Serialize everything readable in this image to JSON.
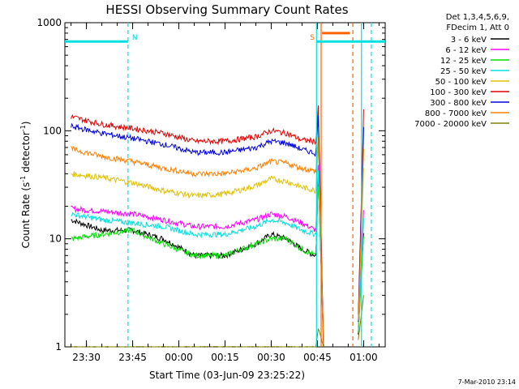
{
  "chart_data": {
    "type": "line",
    "title": "HESSI Observing Summary Count Rates",
    "xlabel": "Start Time (03-Jun-09 23:25:22)",
    "ylabel_main": "Count Rate (s",
    "ylabel_sup1": "-1",
    "ylabel_mid": " detector",
    "ylabel_sup2": "-1",
    "ylabel_end": ")",
    "yscale": "log",
    "ylim": [
      1,
      1000
    ],
    "xlim_minutes": [
      -2,
      102
    ],
    "y_ticks": [
      {
        "value": 1,
        "label": "1"
      },
      {
        "value": 10,
        "label": "10"
      },
      {
        "value": 100,
        "label": "100"
      },
      {
        "value": 1000,
        "label": "1000"
      }
    ],
    "x_ticks": [
      {
        "minute": 5,
        "label": "23:30"
      },
      {
        "minute": 20,
        "label": "23:45"
      },
      {
        "minute": 35,
        "label": "00:00"
      },
      {
        "minute": 50,
        "label": "00:15"
      },
      {
        "minute": 65,
        "label": "00:30"
      },
      {
        "minute": 80,
        "label": "00:45"
      },
      {
        "minute": 95,
        "label": "01:00"
      }
    ],
    "legend_header": [
      "Det 1,3,4,5,6,9,",
      "FDecim 1, Att 0"
    ],
    "series": [
      {
        "name": "3 - 6 keV",
        "color": "#000000",
        "x": [
          0,
          10,
          20,
          30,
          40,
          50,
          60,
          65,
          70,
          75,
          79.5,
          80.3,
          82,
          93,
          95
        ],
        "y": [
          15,
          12,
          12,
          10,
          7,
          7,
          9,
          11,
          10,
          8,
          7,
          40,
          1,
          1,
          12
        ]
      },
      {
        "name": "6 - 12 keV",
        "color": "#ff00ff",
        "x": [
          0,
          10,
          20,
          30,
          40,
          50,
          60,
          65,
          70,
          75,
          79.5,
          80.3,
          82,
          93,
          95
        ],
        "y": [
          19,
          18,
          17,
          15,
          13,
          13,
          15,
          17,
          16,
          14,
          12,
          50,
          1,
          1,
          18
        ]
      },
      {
        "name": "12 - 25 keV",
        "color": "#00e000",
        "x": [
          0,
          10,
          20,
          30,
          40,
          50,
          60,
          65,
          70,
          75,
          79.5,
          80.3,
          82,
          93,
          95
        ],
        "y": [
          10,
          11,
          12,
          9,
          7,
          7,
          9,
          10,
          10,
          8,
          7,
          35,
          1,
          1,
          11
        ]
      },
      {
        "name": "25 - 50 keV",
        "color": "#00e0e0",
        "x": [
          0,
          10,
          20,
          30,
          40,
          50,
          60,
          65,
          70,
          75,
          79.5,
          80.3,
          82,
          93,
          95
        ],
        "y": [
          17,
          15,
          14,
          13,
          11,
          11,
          13,
          15,
          14,
          12,
          11,
          45,
          1,
          1,
          15
        ]
      },
      {
        "name": "50 - 100 keV",
        "color": "#e0c000",
        "x": [
          0,
          10,
          20,
          30,
          40,
          50,
          60,
          65,
          70,
          75,
          79.5,
          80.3,
          82,
          93,
          95
        ],
        "y": [
          40,
          37,
          33,
          28,
          25,
          26,
          31,
          36,
          34,
          30,
          28,
          80,
          1,
          1,
          45
        ]
      },
      {
        "name": "100 - 300 keV",
        "color": "#e00000",
        "x": [
          0,
          10,
          20,
          30,
          40,
          50,
          60,
          65,
          70,
          75,
          79.5,
          80.3,
          82,
          93,
          95
        ],
        "y": [
          135,
          115,
          105,
          95,
          80,
          80,
          88,
          100,
          95,
          82,
          80,
          170,
          1,
          1,
          150
        ]
      },
      {
        "name": "300 - 800 keV",
        "color": "#0000e0",
        "x": [
          0,
          10,
          20,
          30,
          40,
          50,
          60,
          65,
          70,
          75,
          79.5,
          80.3,
          82,
          93,
          95
        ],
        "y": [
          110,
          95,
          85,
          75,
          63,
          63,
          70,
          80,
          77,
          67,
          62,
          140,
          1,
          1,
          110
        ]
      },
      {
        "name": "800 - 7000 keV",
        "color": "#ff8000",
        "x": [
          0,
          10,
          20,
          30,
          40,
          50,
          60,
          65,
          70,
          75,
          79.5,
          80.3,
          82,
          93,
          95
        ],
        "y": [
          68,
          58,
          52,
          45,
          40,
          40,
          45,
          52,
          50,
          45,
          42,
          90,
          1,
          1,
          65
        ]
      },
      {
        "name": "7000 - 20000 keV",
        "color": "#808000",
        "x": [
          0,
          10,
          20,
          30,
          40,
          50,
          60,
          65,
          70,
          75,
          79.5,
          80.3,
          82,
          93,
          95
        ],
        "y": [
          1,
          1,
          1,
          1,
          1,
          1,
          1,
          1,
          1,
          1,
          1,
          1.5,
          1,
          1,
          3
        ]
      }
    ],
    "attenuator_bars": [
      {
        "color": "#00e0e0",
        "x0": -2,
        "x1": 18.5,
        "y": 670,
        "label": "N"
      },
      {
        "color": "#00e0e0",
        "x0": 79.7,
        "x1": 102,
        "y": 670,
        "label": "S"
      },
      {
        "color": "#ff6000",
        "x0": 81.5,
        "x1": 90.5,
        "y": 800,
        "label": ""
      }
    ],
    "vlines": [
      {
        "minute": 18.5,
        "color": "#00e0e0",
        "dash": true
      },
      {
        "minute": 79.7,
        "color": "#00e0e0",
        "dash": false
      },
      {
        "minute": 81.2,
        "color": "#ff6000",
        "dash": false
      },
      {
        "minute": 91.5,
        "color": "#ff6000",
        "dash": true
      },
      {
        "minute": 94.3,
        "color": "#00e0e0",
        "dash": false
      },
      {
        "minute": 97.5,
        "color": "#00e0e0",
        "dash": true
      }
    ]
  },
  "footer_date": "7-Mar-2010 23:14"
}
